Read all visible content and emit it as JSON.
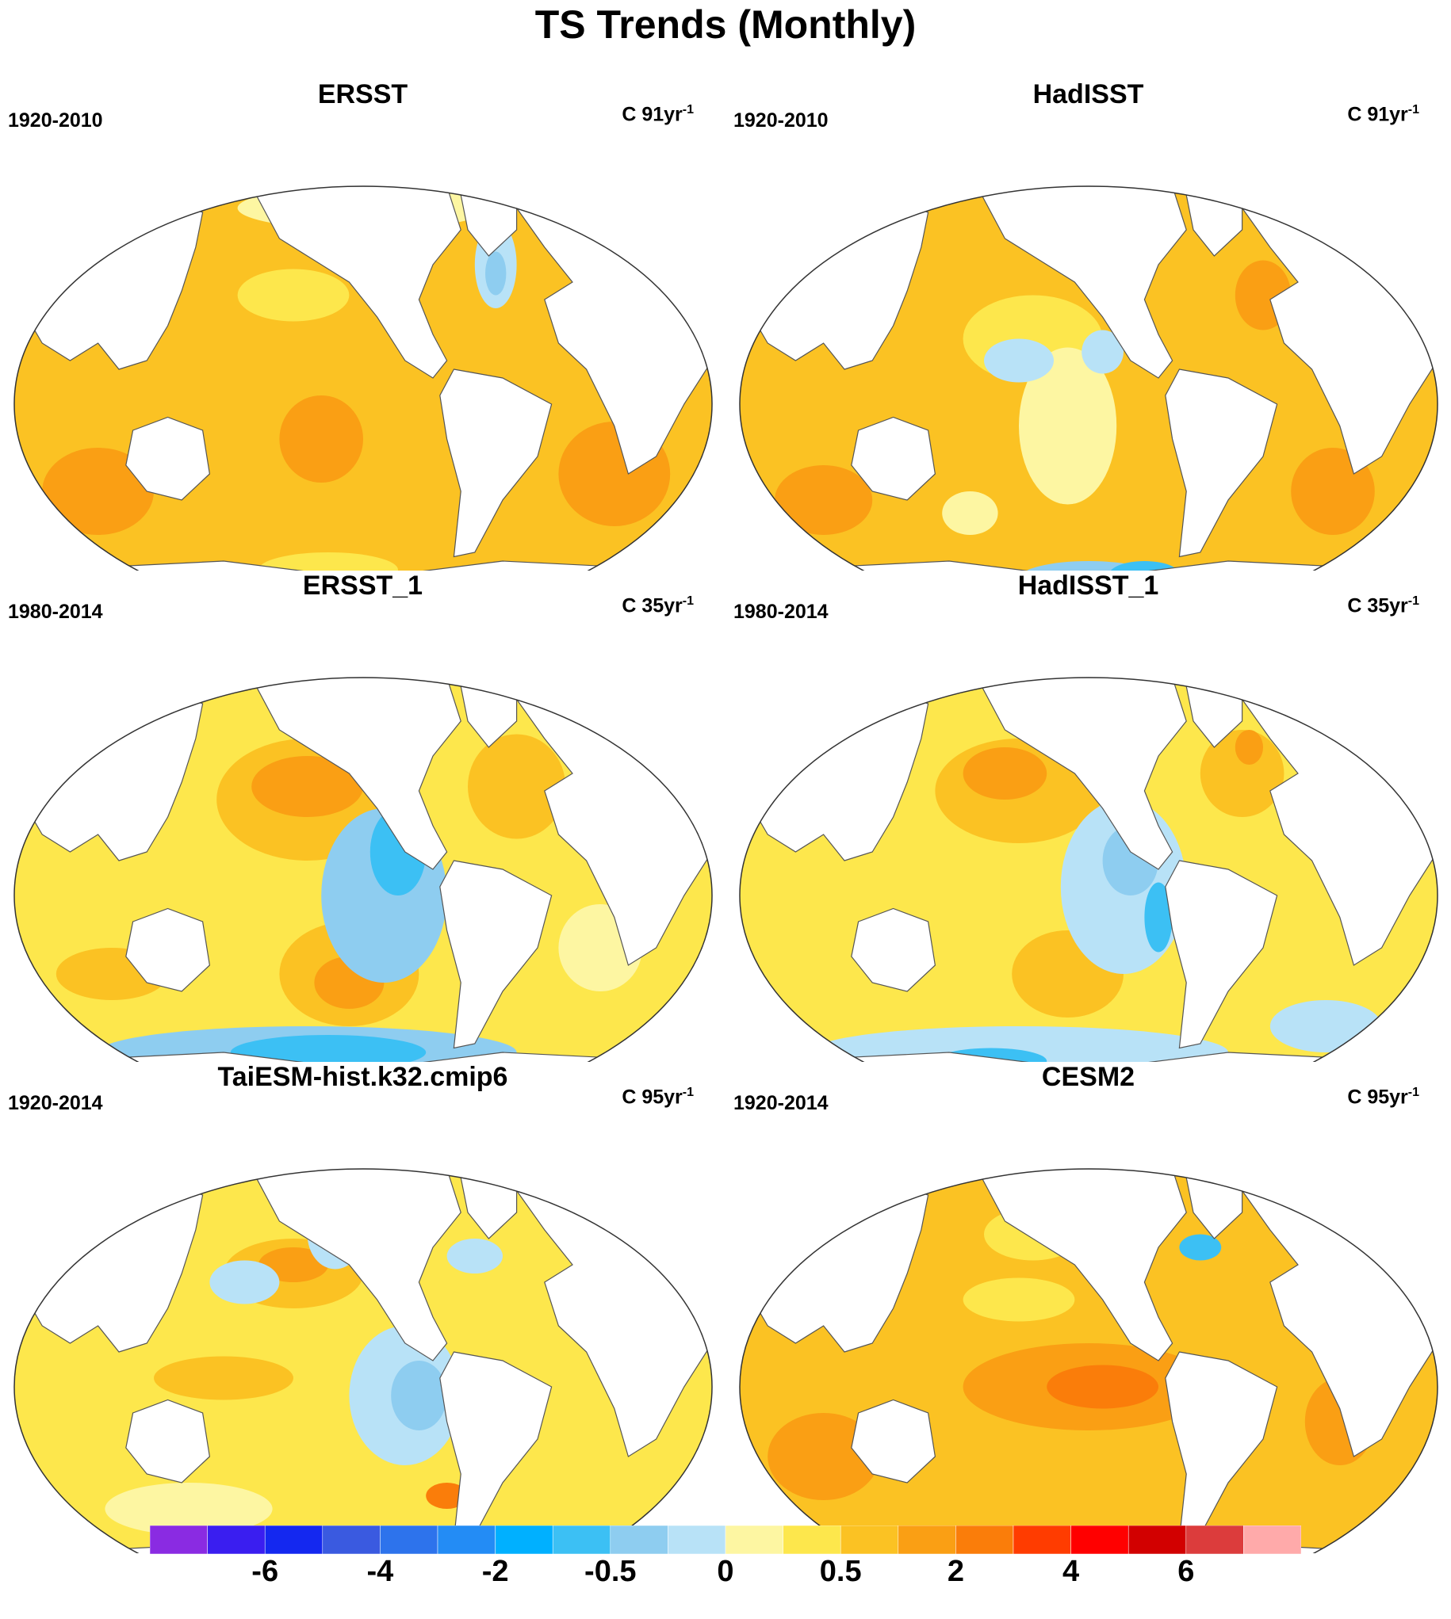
{
  "title": "TS Trends (Monthly)",
  "panels": [
    {
      "title": "ERSST",
      "period": "1920-2010",
      "units": "C 91yr",
      "units_exp": "-1",
      "pattern": "warm_uniform"
    },
    {
      "title": "HadISST",
      "period": "1920-2010",
      "units": "C 91yr",
      "units_exp": "-1",
      "pattern": "warm_patchy"
    },
    {
      "title": "ERSST_1",
      "period": "1980-2014",
      "units": "C 35yr",
      "units_exp": "-1",
      "pattern": "la_nina"
    },
    {
      "title": "HadISST_1",
      "period": "1980-2014",
      "units": "C 35yr",
      "units_exp": "-1",
      "pattern": "la_nina_patchy"
    },
    {
      "title": "TaiESM-hist.k32.cmip6",
      "period": "1920-2014",
      "units": "C 95yr",
      "units_exp": "-1",
      "pattern": "model_cool_east"
    },
    {
      "title": "CESM2",
      "period": "1920-2014",
      "units": "C 95yr",
      "units_exp": "-1",
      "pattern": "model_warm"
    }
  ],
  "colorbar": {
    "colors": [
      "#8a2be2",
      "#3a1ef0",
      "#1428f0",
      "#3a5ae0",
      "#2d73ec",
      "#238cf5",
      "#00b0ff",
      "#3cc0f4",
      "#8ecdf0",
      "#b8e2f7",
      "#fdf6a2",
      "#fde74c",
      "#fbc223",
      "#fa9f14",
      "#fa7d0a",
      "#ff3c00",
      "#ff0000",
      "#d20000",
      "#dc3c3c",
      "#ffaaaa"
    ],
    "labels": [
      "-6",
      "-4",
      "-2",
      "-0.5",
      "0",
      "0.5",
      "2",
      "4",
      "6"
    ],
    "label_positions": [
      2,
      4,
      6,
      8,
      10,
      12,
      14,
      16,
      18
    ]
  }
}
